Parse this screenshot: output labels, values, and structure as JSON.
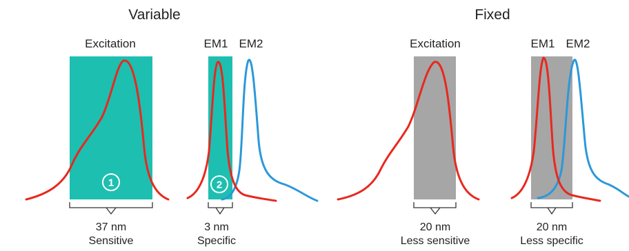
{
  "colors": {
    "variable_band": "#1dbfb0",
    "fixed_band": "#a6a6a6",
    "excitation_curve": "#e8281e",
    "em2_curve": "#2b98d9",
    "bracket": "#333333"
  },
  "variable": {
    "title": "Variable",
    "excitation": {
      "label": "Excitation",
      "marker": "1",
      "width": "37 nm",
      "quality": "Sensitive"
    },
    "emission": {
      "em1_label": "EM1",
      "em2_label": "EM2",
      "marker": "2",
      "width": "3 nm",
      "quality": "Specific"
    }
  },
  "fixed": {
    "title": "Fixed",
    "excitation": {
      "label": "Excitation",
      "width": "20 nm",
      "quality": "Less sensitive"
    },
    "emission": {
      "em1_label": "EM1",
      "em2_label": "EM2",
      "width": "20 nm",
      "quality": "Less specific"
    }
  }
}
